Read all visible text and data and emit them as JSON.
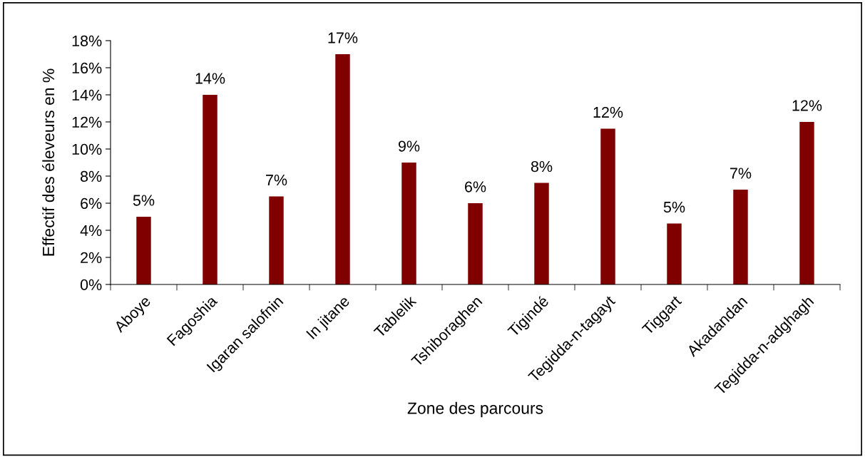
{
  "chart_data": {
    "type": "bar",
    "xlabel": "Zone des parcours",
    "ylabel": "Effectif des éleveurs en %",
    "categories": [
      "Aboye",
      "Fagoshia",
      "Igaran salofnin",
      "In jitane",
      "Tablelik",
      "Tshiboraghen",
      "Tigindé",
      "Tegidda-n-tagayt",
      "Tiggart",
      "Akadandan",
      "Tegidda-n-adghagh"
    ],
    "values": [
      5,
      14,
      6.5,
      17,
      9,
      6,
      7.5,
      11.5,
      4.5,
      7,
      12
    ],
    "value_labels": [
      "5%",
      "14%",
      "7%",
      "17%",
      "9%",
      "6%",
      "8%",
      "12%",
      "5%",
      "7%",
      "12%"
    ],
    "color": "#800000",
    "ylim": [
      0,
      18
    ],
    "yticks": [
      {
        "value": 0,
        "label": "0%"
      },
      {
        "value": 2,
        "label": "2%"
      },
      {
        "value": 4,
        "label": "4%"
      },
      {
        "value": 6,
        "label": "6%"
      },
      {
        "value": 8,
        "label": "8%"
      },
      {
        "value": 10,
        "label": "10%"
      },
      {
        "value": 12,
        "label": "12%"
      },
      {
        "value": 14,
        "label": "14%"
      },
      {
        "value": 16,
        "label": "16%"
      },
      {
        "value": 18,
        "label": "18%"
      }
    ],
    "grid": false,
    "legend": false
  }
}
